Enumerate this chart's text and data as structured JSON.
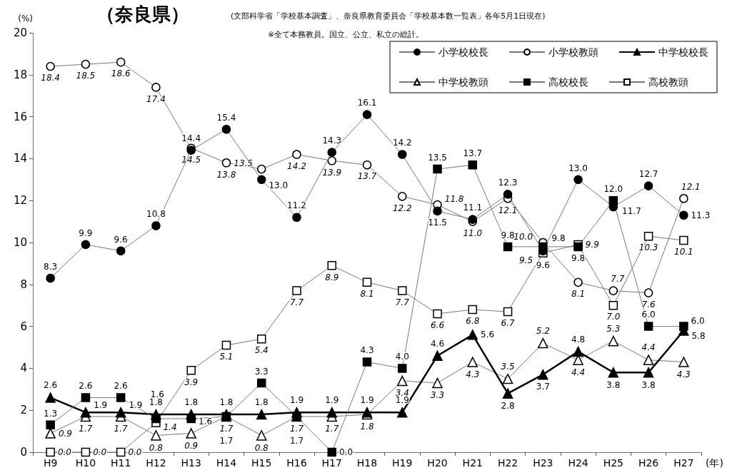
{
  "chart_data": {
    "type": "line",
    "title": "（奈良県）",
    "subtitle": "(文部科学省「学校基本調査」、奈良県教育委員会「学校基本数一覧表」各年5月1日現在)",
    "annotations": [
      "※全て本務教員。国立、公立、私立の総計。"
    ],
    "ylabel": "(%)",
    "xlabel": "(年)",
    "categories": [
      "H9",
      "H10",
      "H11",
      "H12",
      "H13",
      "H14",
      "H15",
      "H16",
      "H17",
      "H18",
      "H19",
      "H20",
      "H21",
      "H22",
      "H23",
      "H24",
      "H25",
      "H26",
      "H27"
    ],
    "series": [
      {
        "name": "小学校校長",
        "color": "#000000",
        "marker": "circle",
        "values": [
          8.3,
          9.9,
          9.6,
          10.8,
          14.4,
          15.4,
          13.0,
          11.2,
          14.3,
          16.1,
          14.2,
          11.5,
          11.1,
          12.3,
          9.6,
          13.0,
          11.7,
          12.7,
          11.3
        ],
        "value_labels": [
          "8.3",
          "9.9",
          "9.6",
          "10.8",
          "14.4",
          "15.4",
          "13.0",
          "11.2",
          "14.3",
          "16.1",
          "14.2",
          "11.5",
          "11.1",
          "12.3",
          "9.6",
          "13.0",
          "11.7",
          "12.7",
          "11.3"
        ]
      },
      {
        "name": "小学校教頭",
        "color": "#000000",
        "marker": "circle",
        "values": [
          18.4,
          18.5,
          18.6,
          17.4,
          14.5,
          13.8,
          13.5,
          14.2,
          13.9,
          13.7,
          12.2,
          11.8,
          11.0,
          12.1,
          10.0,
          8.1,
          7.7,
          7.6,
          12.1
        ],
        "value_labels": [
          "18.4",
          "18.5",
          "18.6",
          "17.4",
          "14.5",
          "13.8",
          "13.5",
          "14.2",
          "13.9",
          "13.7",
          "12.2",
          "11.8",
          "11.0",
          "12.1",
          "10.0",
          "8.1",
          "7.7",
          "7.6",
          "12.1"
        ]
      },
      {
        "name": "中学校校長",
        "color": "#000000",
        "marker": "triangle",
        "values": [
          2.6,
          1.9,
          1.9,
          1.8,
          1.8,
          1.8,
          1.8,
          1.9,
          1.9,
          1.9,
          1.9,
          4.6,
          5.6,
          2.8,
          3.7,
          4.8,
          3.8,
          3.8,
          5.8
        ],
        "value_labels": [
          "2.6",
          "1.9",
          "1.9",
          "1.8",
          "1.8",
          "1.8",
          "1.8",
          "1.9",
          "1.9",
          "1.9",
          "1.9",
          "4.6",
          "5.6",
          "2.8",
          "3.7",
          "4.8",
          "3.8",
          "3.8",
          "5.8"
        ]
      },
      {
        "name": "中学校教頭",
        "color": "#000000",
        "marker": "triangle",
        "values": [
          0.9,
          1.7,
          1.7,
          0.8,
          0.9,
          1.7,
          0.8,
          1.7,
          1.7,
          1.8,
          3.4,
          3.3,
          4.3,
          3.5,
          5.2,
          4.4,
          5.3,
          4.4,
          4.3
        ],
        "value_labels": [
          "0.9",
          "1.7",
          "1.7",
          "0.8",
          "0.9",
          "1.7",
          "0.8",
          "1.7",
          "1.7",
          "1.8",
          "3.4",
          "3.3",
          "4.3",
          "3.5",
          "5.2",
          "4.4",
          "5.3",
          "4.4",
          "4.3"
        ]
      },
      {
        "name": "高校校長",
        "color": "#000000",
        "marker": "square",
        "values": [
          1.3,
          2.6,
          2.6,
          1.6,
          1.6,
          1.7,
          3.3,
          1.7,
          0.0,
          4.3,
          4.0,
          13.5,
          13.7,
          9.8,
          9.8,
          9.8,
          12.0,
          6.0,
          6.0
        ],
        "value_labels": [
          "1.3",
          "2.6",
          "2.6",
          "1.6",
          "1.6",
          "1.7",
          "3.3",
          "1.7",
          "0.0",
          "4.3",
          "4.0",
          "13.5",
          "13.7",
          "9.8",
          "9.8",
          "9.8",
          "12.0",
          "6.0",
          "6.0"
        ]
      },
      {
        "name": "高校教頭",
        "color": "#000000",
        "marker": "square",
        "values": [
          0.0,
          0.0,
          0.0,
          1.4,
          3.9,
          5.1,
          5.4,
          7.7,
          8.9,
          8.1,
          7.7,
          6.6,
          6.8,
          6.7,
          9.5,
          9.9,
          7.0,
          10.3,
          10.1
        ],
        "value_labels": [
          "0.0",
          "0.0",
          "0.0",
          "1.4",
          "3.9",
          "5.1",
          "5.4",
          "7.7",
          "8.9",
          "8.1",
          "7.7",
          "6.6",
          "6.8",
          "6.7",
          "9.5",
          "9.9",
          "7.0",
          "10.3",
          "10.1"
        ]
      }
    ],
    "ylim": [
      0,
      20
    ],
    "yticks": [
      0,
      2,
      4,
      6,
      8,
      10,
      12,
      14,
      16,
      18,
      20
    ],
    "grid": false,
    "legend": "top right",
    "data_labels": true
  }
}
